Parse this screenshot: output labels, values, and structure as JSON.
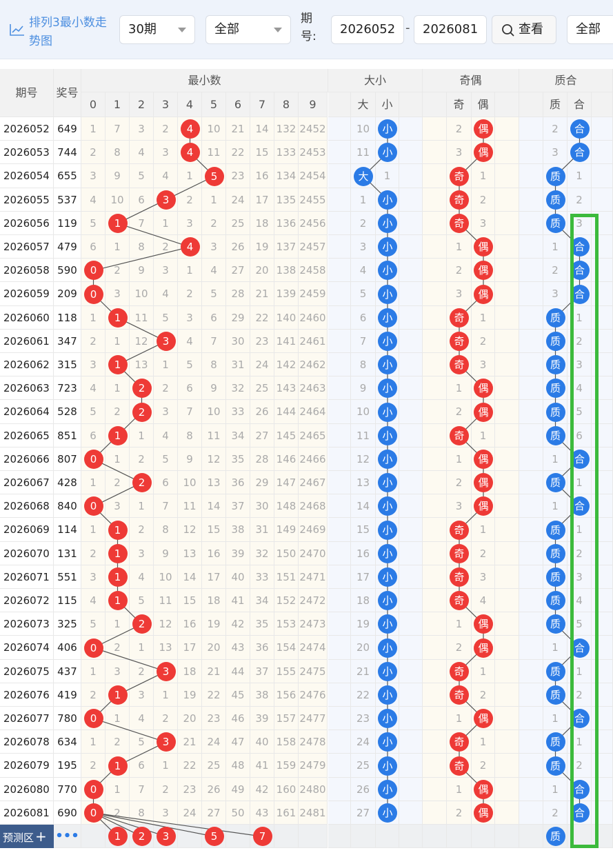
{
  "toolbar": {
    "title": "排列3最小数走势图",
    "period_select": "30期",
    "filter_select": "全部",
    "period_label": "期号:",
    "range_start": "2026052",
    "range_separator": "-",
    "range_end": "2026081",
    "search_label": "查看",
    "filter2_select": "全部"
  },
  "headers": {
    "issue": "期号",
    "prize": "奖号",
    "min_group": "最小数",
    "size_group": "大小",
    "oddeven_group": "奇偶",
    "prime_group": "质合",
    "digits": [
      "0",
      "1",
      "2",
      "3",
      "4",
      "5",
      "6",
      "7",
      "8",
      "9"
    ],
    "size_cols": [
      "大",
      "小"
    ],
    "oddeven_cols": [
      "奇",
      "偶"
    ],
    "prime_cols": [
      "质",
      "合"
    ]
  },
  "rows": [
    {
      "issue": "2026052",
      "prize": "649",
      "min": 4,
      "mc": [
        "1",
        "7",
        "3",
        "2",
        "4",
        "10",
        "21",
        "14",
        "132",
        "2452"
      ],
      "size": "小",
      "size_miss": "10",
      "oe": "偶",
      "oe_miss": "2",
      "pc": "合",
      "pc_miss": "2"
    },
    {
      "issue": "2026053",
      "prize": "744",
      "min": 4,
      "mc": [
        "2",
        "8",
        "4",
        "3",
        "4",
        "11",
        "22",
        "15",
        "133",
        "2453"
      ],
      "size": "小",
      "size_miss": "11",
      "oe": "偶",
      "oe_miss": "3",
      "pc": "合",
      "pc_miss": "3"
    },
    {
      "issue": "2026054",
      "prize": "655",
      "min": 5,
      "mc": [
        "3",
        "9",
        "5",
        "4",
        "1",
        "5",
        "23",
        "16",
        "134",
        "2454"
      ],
      "size": "大",
      "size_miss": "1",
      "oe": "奇",
      "oe_miss": "1",
      "pc": "质",
      "pc_miss": "1"
    },
    {
      "issue": "2026055",
      "prize": "537",
      "min": 3,
      "mc": [
        "4",
        "10",
        "6",
        "3",
        "2",
        "1",
        "24",
        "17",
        "135",
        "2455"
      ],
      "size": "小",
      "size_miss": "1",
      "oe": "奇",
      "oe_miss": "2",
      "pc": "质",
      "pc_miss": "2"
    },
    {
      "issue": "2026056",
      "prize": "119",
      "min": 1,
      "mc": [
        "5",
        "1",
        "7",
        "1",
        "3",
        "2",
        "25",
        "18",
        "136",
        "2456"
      ],
      "size": "小",
      "size_miss": "2",
      "oe": "奇",
      "oe_miss": "3",
      "pc": "质",
      "pc_miss": "3"
    },
    {
      "issue": "2026057",
      "prize": "479",
      "min": 4,
      "mc": [
        "6",
        "1",
        "8",
        "2",
        "4",
        "3",
        "26",
        "19",
        "137",
        "2457"
      ],
      "size": "小",
      "size_miss": "3",
      "oe": "偶",
      "oe_miss": "1",
      "pc": "合",
      "pc_miss": "1"
    },
    {
      "issue": "2026058",
      "prize": "590",
      "min": 0,
      "mc": [
        "0",
        "2",
        "9",
        "3",
        "1",
        "4",
        "27",
        "20",
        "138",
        "2458"
      ],
      "size": "小",
      "size_miss": "4",
      "oe": "偶",
      "oe_miss": "2",
      "pc": "合",
      "pc_miss": "2"
    },
    {
      "issue": "2026059",
      "prize": "209",
      "min": 0,
      "mc": [
        "0",
        "3",
        "10",
        "4",
        "2",
        "5",
        "28",
        "21",
        "139",
        "2459"
      ],
      "size": "小",
      "size_miss": "5",
      "oe": "偶",
      "oe_miss": "3",
      "pc": "合",
      "pc_miss": "3"
    },
    {
      "issue": "2026060",
      "prize": "118",
      "min": 1,
      "mc": [
        "1",
        "1",
        "11",
        "5",
        "3",
        "6",
        "29",
        "22",
        "140",
        "2460"
      ],
      "size": "小",
      "size_miss": "6",
      "oe": "奇",
      "oe_miss": "1",
      "pc": "质",
      "pc_miss": "1"
    },
    {
      "issue": "2026061",
      "prize": "347",
      "min": 3,
      "mc": [
        "2",
        "1",
        "12",
        "3",
        "4",
        "7",
        "30",
        "23",
        "141",
        "2461"
      ],
      "size": "小",
      "size_miss": "7",
      "oe": "奇",
      "oe_miss": "2",
      "pc": "质",
      "pc_miss": "2"
    },
    {
      "issue": "2026062",
      "prize": "315",
      "min": 1,
      "mc": [
        "3",
        "1",
        "13",
        "1",
        "5",
        "8",
        "31",
        "24",
        "142",
        "2462"
      ],
      "size": "小",
      "size_miss": "8",
      "oe": "奇",
      "oe_miss": "3",
      "pc": "质",
      "pc_miss": "3"
    },
    {
      "issue": "2026063",
      "prize": "723",
      "min": 2,
      "mc": [
        "4",
        "1",
        "2",
        "2",
        "6",
        "9",
        "32",
        "25",
        "143",
        "2463"
      ],
      "size": "小",
      "size_miss": "9",
      "oe": "偶",
      "oe_miss": "1",
      "pc": "质",
      "pc_miss": "4"
    },
    {
      "issue": "2026064",
      "prize": "528",
      "min": 2,
      "mc": [
        "5",
        "2",
        "2",
        "3",
        "7",
        "10",
        "33",
        "26",
        "144",
        "2464"
      ],
      "size": "小",
      "size_miss": "10",
      "oe": "偶",
      "oe_miss": "2",
      "pc": "质",
      "pc_miss": "5"
    },
    {
      "issue": "2026065",
      "prize": "851",
      "min": 1,
      "mc": [
        "6",
        "1",
        "1",
        "4",
        "8",
        "11",
        "34",
        "27",
        "145",
        "2465"
      ],
      "size": "小",
      "size_miss": "11",
      "oe": "奇",
      "oe_miss": "1",
      "pc": "质",
      "pc_miss": "6"
    },
    {
      "issue": "2026066",
      "prize": "807",
      "min": 0,
      "mc": [
        "0",
        "1",
        "2",
        "5",
        "9",
        "12",
        "35",
        "28",
        "146",
        "2466"
      ],
      "size": "小",
      "size_miss": "12",
      "oe": "偶",
      "oe_miss": "1",
      "pc": "合",
      "pc_miss": "1"
    },
    {
      "issue": "2026067",
      "prize": "428",
      "min": 2,
      "mc": [
        "1",
        "2",
        "2",
        "6",
        "10",
        "13",
        "36",
        "29",
        "147",
        "2467"
      ],
      "size": "小",
      "size_miss": "13",
      "oe": "偶",
      "oe_miss": "2",
      "pc": "质",
      "pc_miss": "1"
    },
    {
      "issue": "2026068",
      "prize": "840",
      "min": 0,
      "mc": [
        "0",
        "3",
        "1",
        "7",
        "11",
        "14",
        "37",
        "30",
        "148",
        "2468"
      ],
      "size": "小",
      "size_miss": "14",
      "oe": "偶",
      "oe_miss": "3",
      "pc": "合",
      "pc_miss": "1"
    },
    {
      "issue": "2026069",
      "prize": "114",
      "min": 1,
      "mc": [
        "1",
        "1",
        "2",
        "8",
        "12",
        "15",
        "38",
        "31",
        "149",
        "2469"
      ],
      "size": "小",
      "size_miss": "15",
      "oe": "奇",
      "oe_miss": "1",
      "pc": "质",
      "pc_miss": "1"
    },
    {
      "issue": "2026070",
      "prize": "131",
      "min": 1,
      "mc": [
        "2",
        "1",
        "3",
        "9",
        "13",
        "16",
        "39",
        "32",
        "150",
        "2470"
      ],
      "size": "小",
      "size_miss": "16",
      "oe": "奇",
      "oe_miss": "2",
      "pc": "质",
      "pc_miss": "2"
    },
    {
      "issue": "2026071",
      "prize": "551",
      "min": 1,
      "mc": [
        "3",
        "1",
        "4",
        "10",
        "14",
        "17",
        "40",
        "33",
        "151",
        "2471"
      ],
      "size": "小",
      "size_miss": "17",
      "oe": "奇",
      "oe_miss": "3",
      "pc": "质",
      "pc_miss": "3"
    },
    {
      "issue": "2026072",
      "prize": "115",
      "min": 1,
      "mc": [
        "4",
        "1",
        "5",
        "11",
        "15",
        "18",
        "41",
        "34",
        "152",
        "2472"
      ],
      "size": "小",
      "size_miss": "18",
      "oe": "奇",
      "oe_miss": "4",
      "pc": "质",
      "pc_miss": "4"
    },
    {
      "issue": "2026073",
      "prize": "325",
      "min": 2,
      "mc": [
        "5",
        "1",
        "2",
        "12",
        "16",
        "19",
        "42",
        "35",
        "153",
        "2473"
      ],
      "size": "小",
      "size_miss": "19",
      "oe": "偶",
      "oe_miss": "1",
      "pc": "质",
      "pc_miss": "5"
    },
    {
      "issue": "2026074",
      "prize": "406",
      "min": 0,
      "mc": [
        "0",
        "2",
        "1",
        "13",
        "17",
        "20",
        "43",
        "36",
        "154",
        "2474"
      ],
      "size": "小",
      "size_miss": "20",
      "oe": "偶",
      "oe_miss": "2",
      "pc": "合",
      "pc_miss": "1"
    },
    {
      "issue": "2026075",
      "prize": "437",
      "min": 3,
      "mc": [
        "1",
        "3",
        "2",
        "3",
        "18",
        "21",
        "44",
        "37",
        "155",
        "2475"
      ],
      "size": "小",
      "size_miss": "21",
      "oe": "奇",
      "oe_miss": "1",
      "pc": "质",
      "pc_miss": "1"
    },
    {
      "issue": "2026076",
      "prize": "419",
      "min": 1,
      "mc": [
        "2",
        "1",
        "3",
        "1",
        "19",
        "22",
        "45",
        "38",
        "156",
        "2476"
      ],
      "size": "小",
      "size_miss": "22",
      "oe": "奇",
      "oe_miss": "2",
      "pc": "质",
      "pc_miss": "2"
    },
    {
      "issue": "2026077",
      "prize": "780",
      "min": 0,
      "mc": [
        "0",
        "1",
        "4",
        "2",
        "20",
        "23",
        "46",
        "39",
        "157",
        "2477"
      ],
      "size": "小",
      "size_miss": "23",
      "oe": "偶",
      "oe_miss": "1",
      "pc": "合",
      "pc_miss": "1"
    },
    {
      "issue": "2026078",
      "prize": "634",
      "min": 3,
      "mc": [
        "1",
        "2",
        "5",
        "3",
        "21",
        "24",
        "47",
        "40",
        "158",
        "2478"
      ],
      "size": "小",
      "size_miss": "24",
      "oe": "奇",
      "oe_miss": "1",
      "pc": "质",
      "pc_miss": "1"
    },
    {
      "issue": "2026079",
      "prize": "195",
      "min": 1,
      "mc": [
        "2",
        "1",
        "6",
        "1",
        "22",
        "25",
        "48",
        "41",
        "159",
        "2479"
      ],
      "size": "小",
      "size_miss": "25",
      "oe": "奇",
      "oe_miss": "2",
      "pc": "质",
      "pc_miss": "2"
    },
    {
      "issue": "2026080",
      "prize": "770",
      "min": 0,
      "mc": [
        "0",
        "1",
        "7",
        "2",
        "23",
        "26",
        "49",
        "42",
        "160",
        "2480"
      ],
      "size": "小",
      "size_miss": "26",
      "oe": "偶",
      "oe_miss": "1",
      "pc": "合",
      "pc_miss": "1"
    },
    {
      "issue": "2026081",
      "prize": "690",
      "min": 0,
      "mc": [
        "0",
        "2",
        "8",
        "3",
        "24",
        "27",
        "50",
        "43",
        "161",
        "2481"
      ],
      "size": "小",
      "size_miss": "27",
      "oe": "偶",
      "oe_miss": "2",
      "pc": "合",
      "pc_miss": "2"
    }
  ],
  "prediction": {
    "label": "预测区",
    "plus": "+",
    "more": "•••",
    "balls": [
      "1",
      "2",
      "3",
      "5",
      "7"
    ],
    "prime_ball": "质"
  },
  "colors": {
    "red_ball": "#ee3a36",
    "blue_ball": "#2b7be6",
    "highlight": "#3cba3c",
    "pred_label_bg": "#3d5c8c"
  }
}
